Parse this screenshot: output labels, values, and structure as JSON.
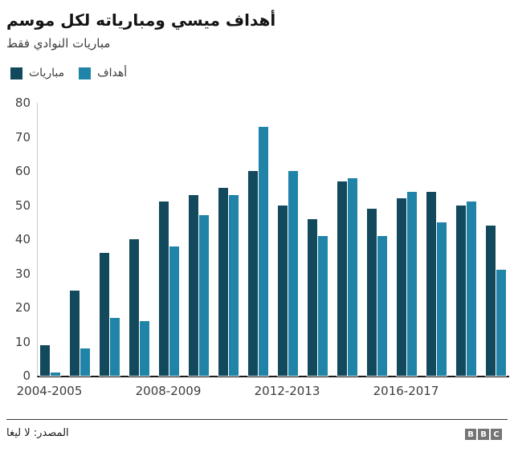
{
  "header": {
    "title": "أهداف ميسي ومبارياته لكل موسم",
    "subtitle": "مباريات النوادي فقط"
  },
  "legend": {
    "matches": {
      "label": "مباريات",
      "color": "#12495c"
    },
    "goals": {
      "label": "أهداف",
      "color": "#1f84a7"
    }
  },
  "chart_data": {
    "type": "bar",
    "title": "أهداف ميسي ومبارياته لكل موسم",
    "subtitle": "مباريات النوادي فقط",
    "n_groups": 16,
    "series": [
      {
        "name": "مباريات",
        "color": "#12495c",
        "values": [
          9,
          25,
          36,
          40,
          51,
          53,
          55,
          60,
          50,
          46,
          57,
          49,
          52,
          54,
          50,
          44
        ]
      },
      {
        "name": "أهداف",
        "color": "#1f84a7",
        "values": [
          1,
          8,
          17,
          16,
          38,
          47,
          53,
          73,
          60,
          41,
          58,
          41,
          54,
          45,
          51,
          31
        ]
      }
    ],
    "x_ticks": [
      {
        "index": 0,
        "label": "2004-2005"
      },
      {
        "index": 4,
        "label": "2008-2009"
      },
      {
        "index": 8,
        "label": "2012-2013"
      },
      {
        "index": 12,
        "label": "2016-2017"
      }
    ],
    "y_ticks": [
      0,
      10,
      20,
      30,
      40,
      50,
      60,
      70,
      80
    ],
    "ylim": [
      0,
      80
    ],
    "grid": false,
    "legend_position": "top-left"
  },
  "footer": {
    "source": "المصدر: لا ليغا",
    "logo_letters": [
      "B",
      "B",
      "C"
    ],
    "logo_color": "#757575"
  }
}
